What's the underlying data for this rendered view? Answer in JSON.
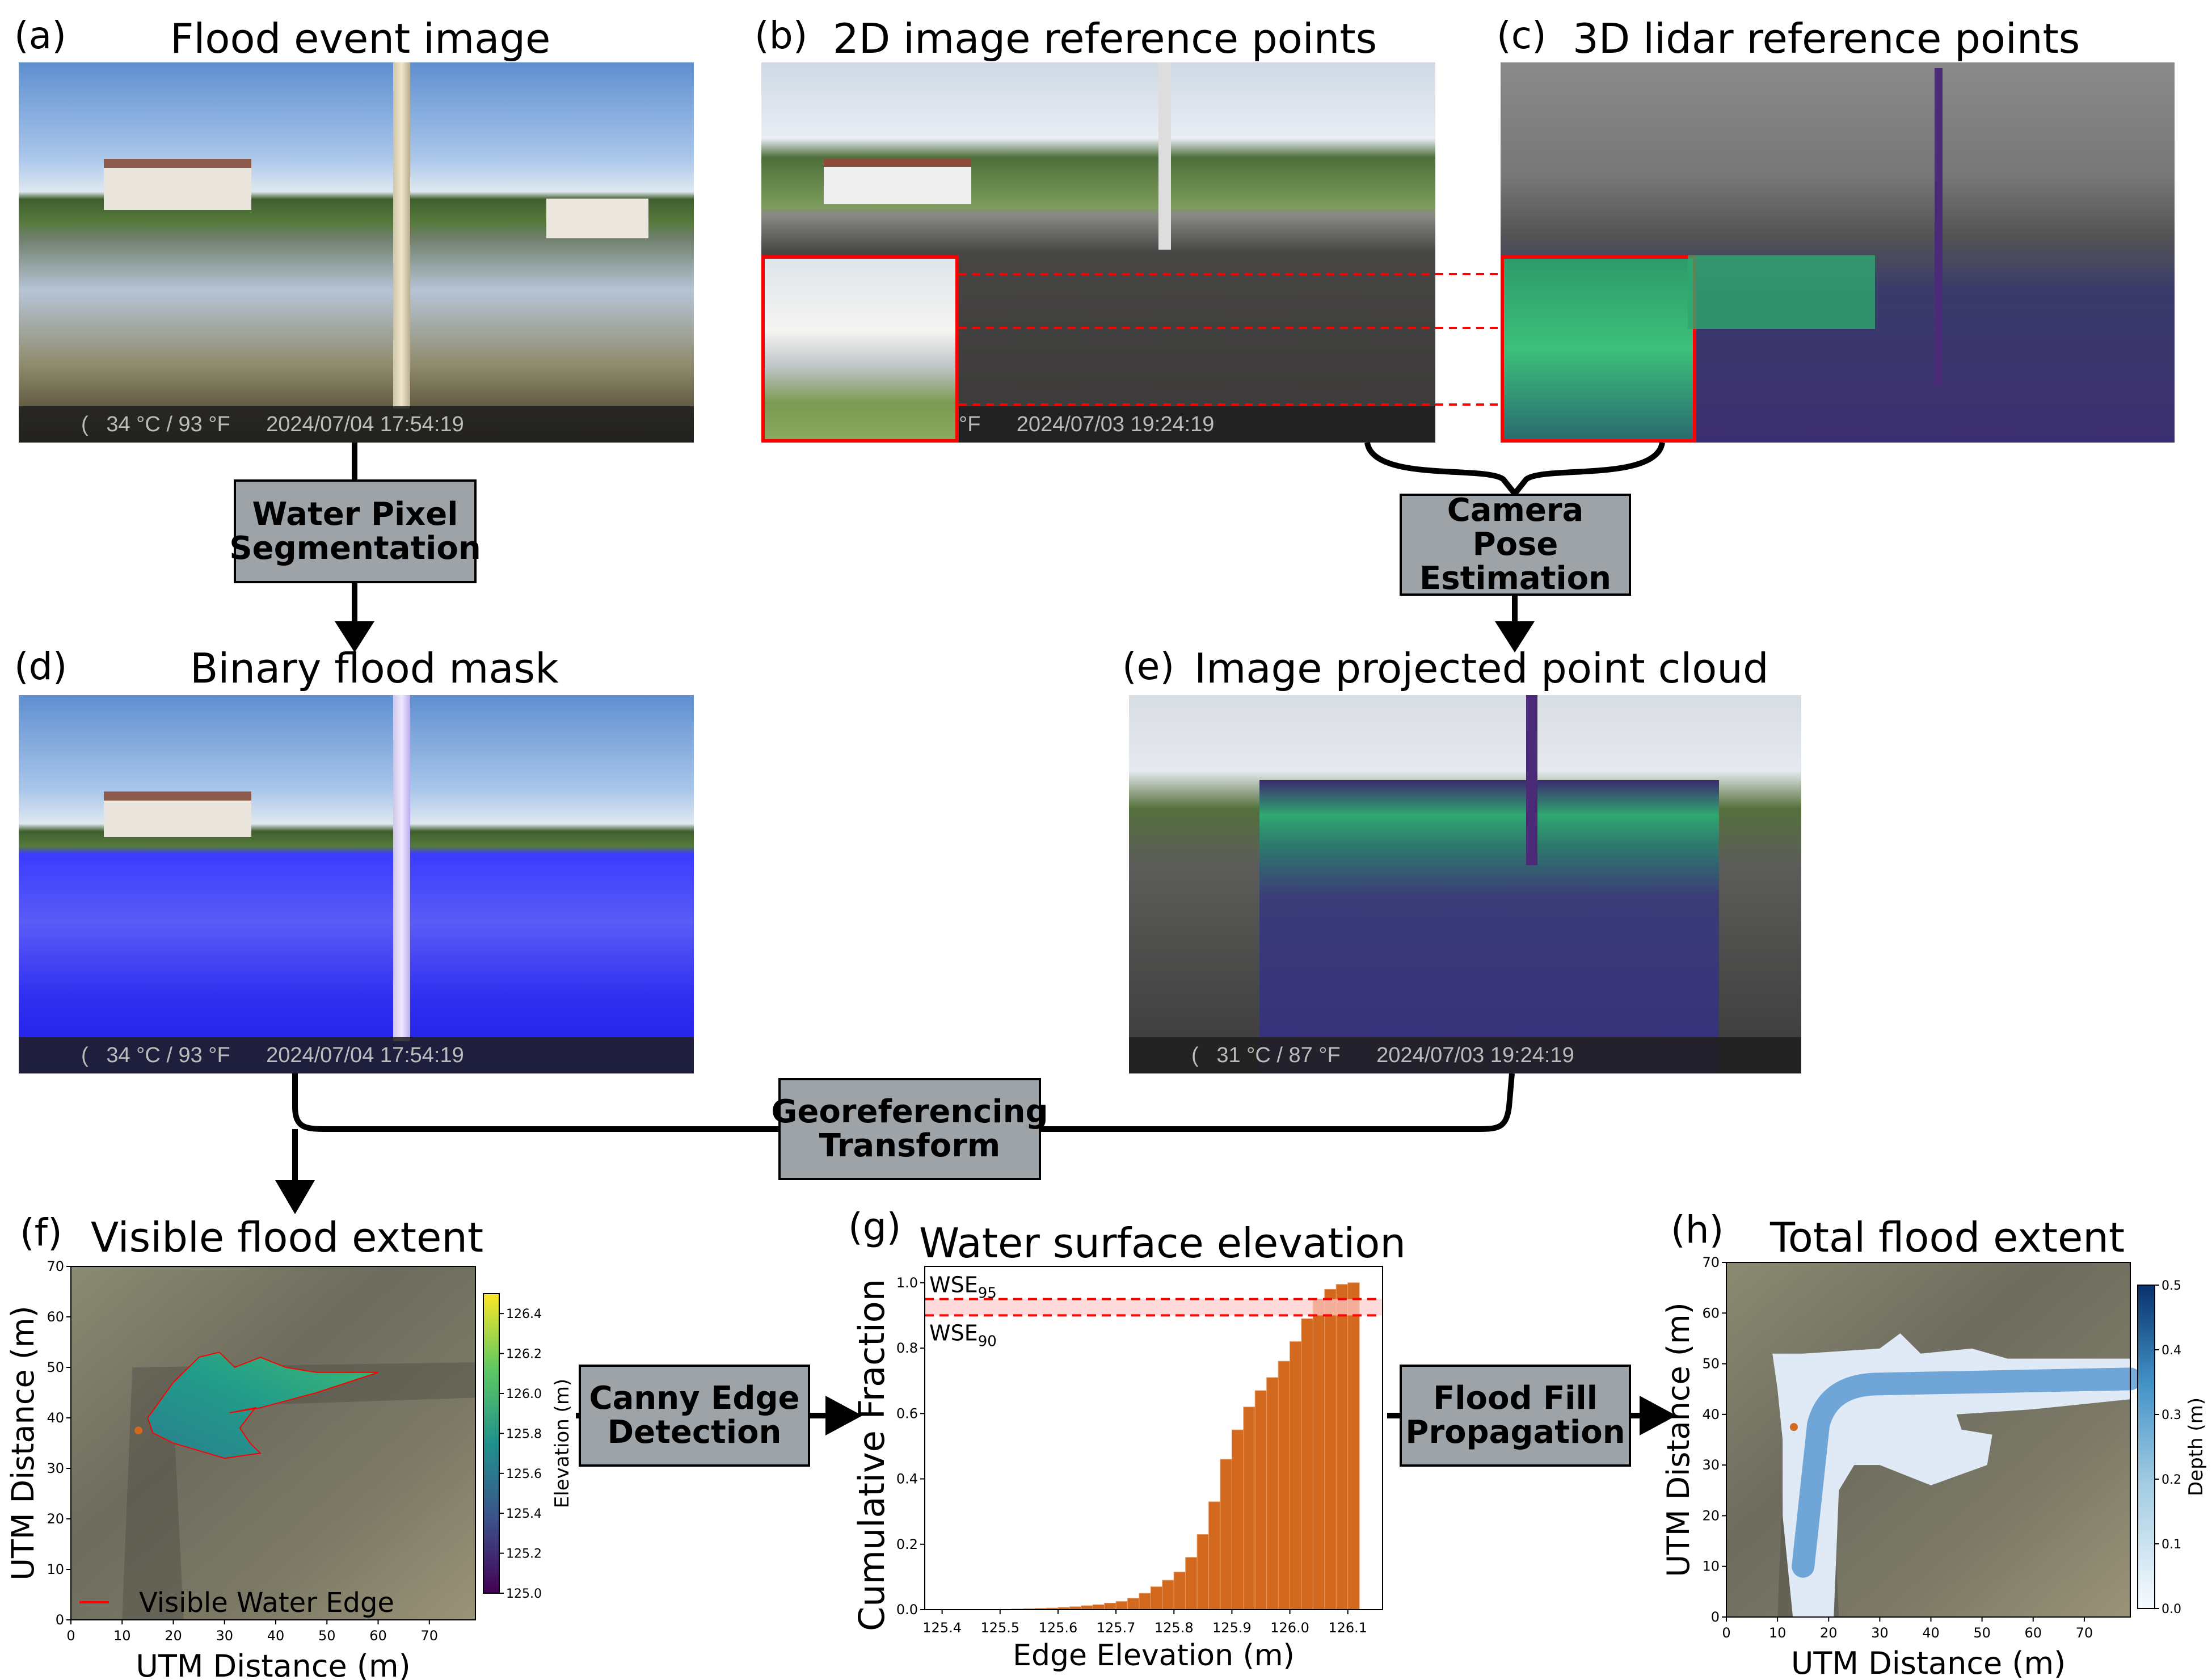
{
  "panels": {
    "a": {
      "label": "(a)",
      "title": "Flood event image",
      "stamp_temp": "(   34 °C / 93 °F",
      "stamp_time": "2024/07/04 17:54:19"
    },
    "b": {
      "label": "(b)",
      "title": "2D image reference points",
      "stamp_temp": "°F",
      "stamp_time": "2024/07/03 19:24:19"
    },
    "c": {
      "label": "(c)",
      "title": "3D lidar reference points"
    },
    "d": {
      "label": "(d)",
      "title": "Binary flood mask",
      "stamp_temp": "(   34 °C / 93 °F",
      "stamp_time": "2024/07/04 17:54:19"
    },
    "e": {
      "label": "(e)",
      "title": "Image projected point cloud",
      "stamp_temp": "(   31 °C / 87 °F",
      "stamp_time": "2024/07/03 19:24:19"
    },
    "f": {
      "label": "(f)",
      "title": "Visible  flood  extent",
      "xlabel": "UTM Distance (m)",
      "ylabel": "UTM Distance (m)",
      "legend": "Visible Water Edge",
      "colorbar_label": "Elevation (m)"
    },
    "g": {
      "label": "(g)",
      "title": "Water surface elevation"
    },
    "h": {
      "label": "(h)",
      "title": "Total flood extent",
      "xlabel": "UTM Distance (m)",
      "ylabel": "UTM Distance (m)",
      "colorbar_label": "Depth (m)"
    }
  },
  "process_boxes": {
    "segmentation": [
      "Water Pixel",
      "Segmentation"
    ],
    "pose": [
      "Camera Pose",
      "Estimation"
    ],
    "georef": [
      "Georeferencing",
      "Transform"
    ],
    "canny": [
      "Canny Edge",
      "Detection"
    ],
    "floodfill": [
      "Flood Fill",
      "Propagation"
    ]
  },
  "maps": {
    "xticks": [
      "0",
      "10",
      "20",
      "30",
      "40",
      "50",
      "60",
      "70"
    ],
    "yticks": [
      "0",
      "10",
      "20",
      "30",
      "40",
      "50",
      "60",
      "70"
    ],
    "xlim": [
      0,
      79
    ],
    "ylim": [
      0,
      70
    ],
    "f_colorbar": {
      "ticks": [
        "125.0",
        "125.2",
        "125.4",
        "125.6",
        "125.8",
        "126.0",
        "126.2",
        "126.4"
      ],
      "range": [
        125.0,
        126.5
      ],
      "colormap": "viridis"
    },
    "h_colorbar": {
      "ticks": [
        "0.0",
        "0.1",
        "0.2",
        "0.3",
        "0.4",
        "0.5"
      ],
      "range": [
        0.0,
        0.5
      ],
      "colormap": "Blues"
    },
    "camera_color": "#d2691e",
    "edge_color": "#ff0000"
  },
  "chart_data": {
    "type": "bar",
    "title": "Water surface elevation",
    "xlabel": "Edge Elevation (m)",
    "ylabel": "Cumulative Fraction",
    "xlim": [
      125.37,
      126.16
    ],
    "ylim": [
      0,
      1.05
    ],
    "xticks": [
      "125.4",
      "125.5",
      "125.6",
      "125.7",
      "125.8",
      "125.9",
      "126.0",
      "126.1"
    ],
    "yticks": [
      "0.0",
      "0.2",
      "0.4",
      "0.6",
      "0.8",
      "1.0"
    ],
    "bar_color": "#d2691e",
    "bin_width": 0.02,
    "x": [
      125.5,
      125.52,
      125.54,
      125.56,
      125.58,
      125.6,
      125.62,
      125.64,
      125.66,
      125.68,
      125.7,
      125.72,
      125.74,
      125.76,
      125.78,
      125.8,
      125.82,
      125.84,
      125.86,
      125.88,
      125.9,
      125.92,
      125.94,
      125.96,
      125.98,
      126.0,
      126.02,
      126.04,
      126.06,
      126.08,
      126.1
    ],
    "values": [
      0.001,
      0.002,
      0.003,
      0.004,
      0.005,
      0.007,
      0.009,
      0.012,
      0.015,
      0.02,
      0.025,
      0.035,
      0.05,
      0.07,
      0.09,
      0.115,
      0.16,
      0.23,
      0.33,
      0.46,
      0.55,
      0.62,
      0.67,
      0.71,
      0.76,
      0.82,
      0.89,
      0.95,
      0.98,
      0.995,
      1.0
    ],
    "hlines": [
      {
        "label": "WSE",
        "sub": "95",
        "y": 0.95
      },
      {
        "label": "WSE",
        "sub": "90",
        "y": 0.9
      }
    ],
    "band_color": "#ffcccc",
    "line_color": "#ff0000"
  }
}
